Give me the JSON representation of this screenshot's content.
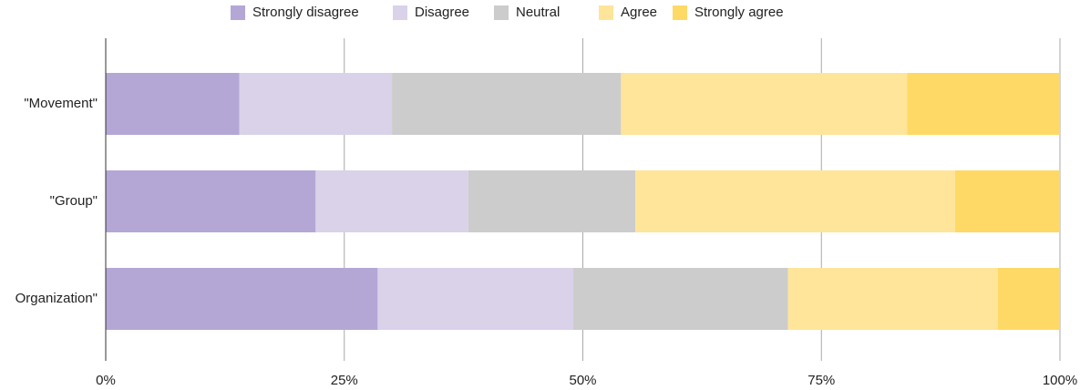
{
  "chart_data": {
    "type": "stacked_bar_horizontal",
    "categories": [
      "\"Movement\"",
      "\"Group\"",
      "Organization\""
    ],
    "series": [
      {
        "name": "Strongly disagree",
        "color": "#b4a7d6",
        "values": [
          14,
          22,
          28.5
        ]
      },
      {
        "name": "Disagree",
        "color": "#d9d2e9",
        "values": [
          16,
          16,
          20.5
        ]
      },
      {
        "name": "Neutral",
        "color": "#cccccc",
        "values": [
          24,
          17.5,
          22.5
        ]
      },
      {
        "name": "Agree",
        "color": "#ffe599",
        "values": [
          30,
          33.5,
          22
        ]
      },
      {
        "name": "Strongly agree",
        "color": "#ffd966",
        "values": [
          16,
          11,
          6.5
        ]
      }
    ],
    "xlim": [
      0,
      100
    ],
    "xticks": [
      {
        "value": 0,
        "label": "0%"
      },
      {
        "value": 25,
        "label": "25%"
      },
      {
        "value": 50,
        "label": "50%"
      },
      {
        "value": 75,
        "label": "75%"
      },
      {
        "value": 100,
        "label": "100%"
      }
    ],
    "grid": true,
    "legend": "top"
  }
}
